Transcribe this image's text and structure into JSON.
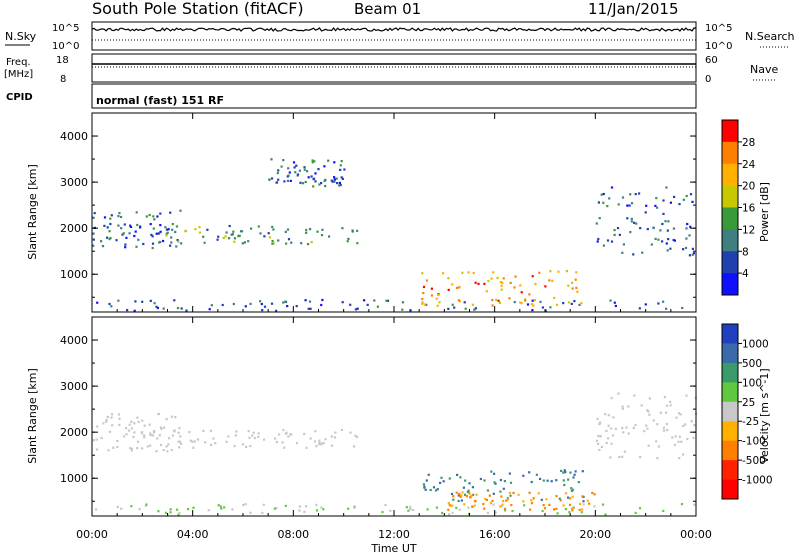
{
  "header": {
    "station": "South Pole Station (fitACF)",
    "beam": "Beam 01",
    "date": "11/Jan/2015"
  },
  "top_panels": {
    "nsky_label": "N.Sky",
    "nsky_ticks": [
      "10^5",
      "10^0"
    ],
    "nsearch_label": "N.Search",
    "nsearch_ticks": [
      "10^5",
      "10^0"
    ],
    "freq_label_1": "Freq.",
    "freq_label_2": "[MHz]",
    "freq_ticks": [
      "18",
      "8"
    ],
    "nave_label": "Nave",
    "nave_ticks": [
      "60",
      "0"
    ],
    "cpid_label": "CPID",
    "cpid_value": "normal (fast) 151 RF"
  },
  "chart_data": [
    {
      "type": "heatmap",
      "panel": "power",
      "ylabel": "Slant Range [km]",
      "yticks": [
        "4000",
        "3000",
        "2000",
        "1000"
      ],
      "ylim": [
        180,
        4500
      ],
      "colorbar_label": "Power [dB]",
      "colorbar_ticks": [
        "28",
        "24",
        "20",
        "16",
        "12",
        "8",
        "4"
      ],
      "colorbar_colors": [
        "#ff0000",
        "#ff8000",
        "#ffb000",
        "#c8c800",
        "#3a9a3a",
        "#3f7f7f",
        "#2040b0",
        "#1010ff"
      ],
      "echo_bands": [
        {
          "t": [
            0.0,
            24.0
          ],
          "r": [
            200,
            450
          ],
          "level": 8
        },
        {
          "t": [
            0.0,
            3.5
          ],
          "r": [
            1550,
            2400
          ],
          "level": 8
        },
        {
          "t": [
            2.5,
            10.5
          ],
          "r": [
            1650,
            2050
          ],
          "level": 12
        },
        {
          "t": [
            13.0,
            19.5
          ],
          "r": [
            300,
            1100
          ],
          "level": 24
        },
        {
          "t": [
            20.0,
            24.0
          ],
          "r": [
            1400,
            2900
          ],
          "level": 8
        },
        {
          "t": [
            7.0,
            10.0
          ],
          "r": [
            2900,
            3500
          ],
          "level": 8
        }
      ]
    },
    {
      "type": "heatmap",
      "panel": "velocity",
      "ylabel": "Slant Range [km]",
      "yticks": [
        "4000",
        "3000",
        "2000",
        "1000"
      ],
      "ylim": [
        180,
        4500
      ],
      "colorbar_label": "Velocity [m s^-1]",
      "colorbar_ticks": [
        "1000",
        "500",
        "100",
        "25",
        "-25",
        "-100",
        "-500",
        "-1000"
      ],
      "colorbar_colors": [
        "#2040c0",
        "#3a6aaa",
        "#3a9a6a",
        "#60c840",
        "#c8c8c8",
        "#ffb000",
        "#ff8000",
        "#ff2000",
        "#ff0000"
      ],
      "echo_bands": [
        {
          "t": [
            0.0,
            24.0
          ],
          "r": [
            200,
            450
          ],
          "level": 25
        },
        {
          "t": [
            0.0,
            3.5
          ],
          "r": [
            1550,
            2400
          ],
          "level": 0
        },
        {
          "t": [
            2.5,
            10.5
          ],
          "r": [
            1650,
            2050
          ],
          "level": 0
        },
        {
          "t": [
            13.0,
            19.5
          ],
          "r": [
            500,
            1200
          ],
          "level": 500
        },
        {
          "t": [
            14.0,
            20.0
          ],
          "r": [
            300,
            700
          ],
          "level": -100
        },
        {
          "t": [
            20.0,
            24.0
          ],
          "r": [
            1400,
            2900
          ],
          "level": 0
        }
      ]
    }
  ],
  "xaxis": {
    "label": "Time UT",
    "ticks": [
      "00:00",
      "04:00",
      "08:00",
      "12:00",
      "16:00",
      "20:00",
      "00:00"
    ],
    "xlim": [
      0,
      24
    ]
  }
}
